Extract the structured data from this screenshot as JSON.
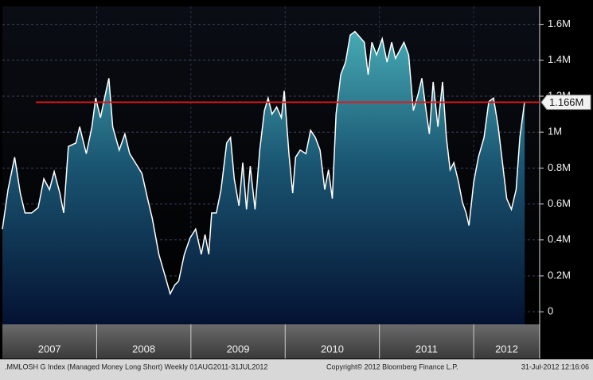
{
  "chart_data": {
    "type": "area",
    "x": [
      2007.0,
      2007.06,
      2007.13,
      2007.19,
      2007.24,
      2007.31,
      2007.38,
      2007.44,
      2007.5,
      2007.55,
      2007.61,
      2007.65,
      2007.7,
      2007.78,
      2007.82,
      2007.89,
      2007.95,
      2007.99,
      2008.04,
      2008.1,
      2008.13,
      2008.17,
      2008.24,
      2008.3,
      2008.35,
      2008.41,
      2008.48,
      2008.54,
      2008.59,
      2008.66,
      2008.72,
      2008.78,
      2008.83,
      2008.87,
      2008.93,
      2008.99,
      2009.05,
      2009.11,
      2009.15,
      2009.19,
      2009.22,
      2009.27,
      2009.32,
      2009.38,
      2009.42,
      2009.46,
      2009.51,
      2009.55,
      2009.59,
      2009.63,
      2009.68,
      2009.73,
      2009.78,
      2009.82,
      2009.86,
      2009.91,
      2009.96,
      2009.99,
      2010.04,
      2010.08,
      2010.11,
      2010.16,
      2010.22,
      2010.27,
      2010.32,
      2010.37,
      2010.42,
      2010.46,
      2010.5,
      2010.54,
      2010.59,
      2010.64,
      2010.69,
      2010.74,
      2010.79,
      2010.84,
      2010.88,
      2010.92,
      2010.97,
      2011.03,
      2011.08,
      2011.13,
      2011.17,
      2011.21,
      2011.26,
      2011.31,
      2011.36,
      2011.41,
      2011.45,
      2011.49,
      2011.53,
      2011.57,
      2011.62,
      2011.67,
      2011.71,
      2011.75,
      2011.79,
      2011.84,
      2011.88,
      2011.92,
      2011.95,
      2012.0,
      2012.05,
      2012.11,
      2012.16,
      2012.21,
      2012.26,
      2012.31,
      2012.35,
      2012.4,
      2012.45,
      2012.49,
      2012.54
    ],
    "series": [
      {
        "color": "#ffffff",
        "values": [
          0.46,
          0.68,
          0.86,
          0.66,
          0.55,
          0.55,
          0.58,
          0.74,
          0.68,
          0.78,
          0.66,
          0.55,
          0.92,
          0.94,
          1.03,
          0.88,
          1.03,
          1.19,
          1.08,
          1.23,
          1.3,
          1.03,
          0.9,
          0.99,
          0.88,
          0.83,
          0.77,
          0.63,
          0.52,
          0.32,
          0.21,
          0.1,
          0.15,
          0.17,
          0.32,
          0.41,
          0.46,
          0.32,
          0.43,
          0.32,
          0.55,
          0.55,
          0.68,
          0.94,
          0.97,
          0.74,
          0.59,
          0.83,
          0.57,
          0.81,
          0.57,
          0.9,
          1.12,
          1.19,
          1.1,
          1.14,
          1.08,
          1.23,
          0.88,
          0.66,
          0.86,
          0.9,
          0.88,
          1.01,
          0.97,
          0.9,
          0.68,
          0.79,
          0.63,
          1.1,
          1.32,
          1.39,
          1.54,
          1.56,
          1.53,
          1.5,
          1.32,
          1.5,
          1.43,
          1.52,
          1.39,
          1.5,
          1.41,
          1.45,
          1.5,
          1.43,
          1.12,
          1.21,
          1.3,
          1.14,
          0.99,
          1.28,
          1.03,
          1.28,
          0.97,
          0.79,
          0.83,
          0.72,
          0.61,
          0.55,
          0.48,
          0.72,
          0.86,
          0.97,
          1.17,
          1.19,
          1.03,
          0.81,
          0.63,
          0.57,
          0.68,
          0.97,
          1.17
        ]
      }
    ],
    "xlim": [
      2007.0,
      2012.7
    ],
    "xticks": [
      {
        "value": 2007.5,
        "label": "2007"
      },
      {
        "value": 2008.5,
        "label": "2008"
      },
      {
        "value": 2009.5,
        "label": "2009"
      },
      {
        "value": 2010.5,
        "label": "2010"
      },
      {
        "value": 2011.5,
        "label": "2011"
      },
      {
        "value": 2012.35,
        "label": "2012"
      }
    ],
    "ylim": [
      -0.07,
      1.7
    ],
    "yticks": [
      0,
      {
        "value": 0.2,
        "label": "0.2M"
      },
      {
        "value": 0.4,
        "label": "0.4M"
      },
      {
        "value": 0.6,
        "label": "0.6M"
      },
      {
        "value": 0.8,
        "label": "0.8M"
      },
      {
        "value": 1,
        "label": "1M"
      },
      {
        "value": 1.2,
        "label": "1.2M"
      },
      {
        "value": 1.4,
        "label": "1.4M"
      },
      {
        "value": 1.6,
        "label": "1.6M"
      }
    ],
    "grid": true,
    "reference": {
      "value": 1.166,
      "label": "1.166M",
      "color": "#e01818"
    },
    "footer": [
      ".MMLOSH G Index (Managed Money Long Short)  Weekly 01AUG2011-31JUL2012",
      "Copyright© 2012 Bloomberg Finance L.P.",
      "31-Jul-2012 12:16:06"
    ]
  }
}
